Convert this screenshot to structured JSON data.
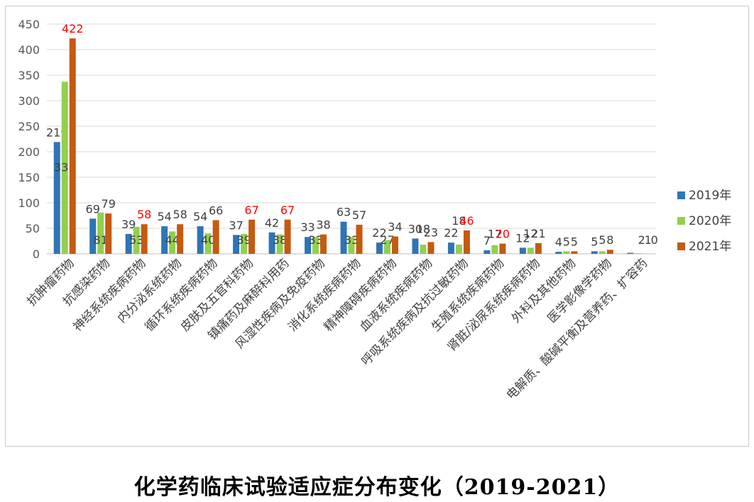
{
  "caption": "化学药临床试验适应症分布变化（2019-2021）",
  "chart_data": {
    "type": "bar",
    "title": "",
    "xlabel": "",
    "ylabel": "",
    "ylim": [
      0,
      450
    ],
    "yticks": [
      0,
      50,
      100,
      150,
      200,
      250,
      300,
      350,
      400,
      450
    ],
    "grid": true,
    "legend_position": "right",
    "categories": [
      "抗肿瘤药物",
      "抗感染药物",
      "神经系统疾病药物",
      "内分泌系统药物",
      "循环系统疾病药物",
      "皮肤及五官科药物",
      "镇痛药及麻醉科用药",
      "风湿性疾病及免疫药物",
      "消化系统疾病药物",
      "精神障碍疾病药物",
      "血液系统疾病药物",
      "呼吸系统疾病及抗过敏药物",
      "生殖系统疾病药物",
      "肾脏/泌尿系统疾病药物",
      "外科及其他药物",
      "医学影像学药物",
      "电解质、酸碱平衡及营养药、扩容药"
    ],
    "series": [
      {
        "name": "2019年",
        "color": "#2e75b6",
        "values": [
          219,
          69,
          39,
          54,
          54,
          37,
          42,
          33,
          63,
          22,
          30,
          22,
          7,
          12,
          4,
          5,
          2
        ]
      },
      {
        "name": "2020年",
        "color": "#92d050",
        "values": [
          337,
          81,
          53,
          44,
          40,
          39,
          38,
          33,
          33,
          27,
          18,
          18,
          17,
          12,
          5,
          5,
          1
        ]
      },
      {
        "name": "2021年",
        "color": "#c55a11",
        "values": [
          422,
          79,
          58,
          58,
          66,
          67,
          67,
          38,
          57,
          34,
          23,
          46,
          20,
          21,
          5,
          8,
          0
        ]
      }
    ],
    "label_colors": {
      "normal": "#404040",
      "highlight": "#ff0000"
    },
    "highlighted_labels": [
      {
        "series": 2,
        "category": 0
      },
      {
        "series": 2,
        "category": 2
      },
      {
        "series": 2,
        "category": 5
      },
      {
        "series": 2,
        "category": 6
      },
      {
        "series": 2,
        "category": 11
      },
      {
        "series": 2,
        "category": 12
      }
    ]
  }
}
